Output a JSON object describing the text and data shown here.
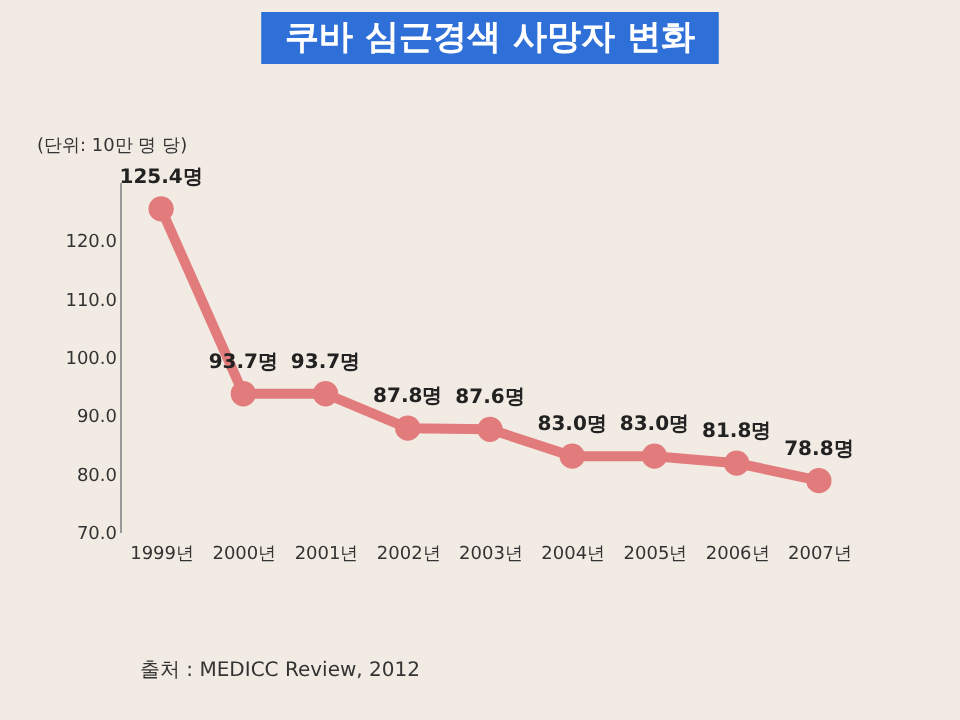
{
  "chart_data": {
    "type": "line",
    "title": "쿠바 심근경색 사망자 변화",
    "ylabel": "(단위: 10만 명 당)",
    "categories": [
      "1999년",
      "2000년",
      "2001년",
      "2002년",
      "2003년",
      "2004년",
      "2005년",
      "2006년",
      "2007년"
    ],
    "series": [
      {
        "color": "#e27b7b",
        "values": [
          125.4,
          93.7,
          93.7,
          87.8,
          87.6,
          83.0,
          83.0,
          81.8,
          78.8
        ],
        "value_labels": [
          "125.4명",
          "93.7명",
          "93.7명",
          "87.8명",
          "87.6명",
          "83.0명",
          "83.0명",
          "81.8명",
          "78.8명"
        ]
      }
    ],
    "ylim": [
      70,
      130
    ],
    "yticks": [
      {
        "value": 70,
        "label": "70.0"
      },
      {
        "value": 80,
        "label": "80.0"
      },
      {
        "value": 90,
        "label": "90.0"
      },
      {
        "value": 100,
        "label": "100.0"
      },
      {
        "value": 110,
        "label": "110.0"
      },
      {
        "value": 120,
        "label": "120.0"
      }
    ],
    "marker": "circle",
    "line_style": "solid",
    "grid": false,
    "annotations": [
      "출처 : MEDICC Review, 2012"
    ]
  }
}
